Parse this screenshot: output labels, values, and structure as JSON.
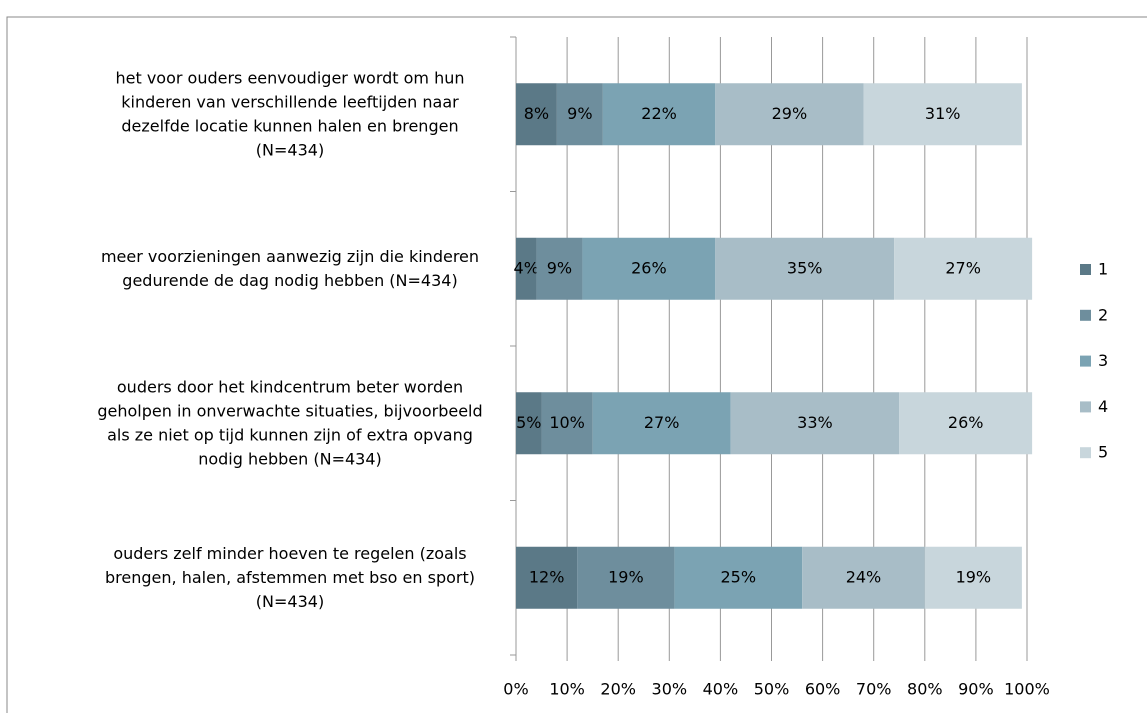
{
  "chart_data": {
    "type": "stacked-barh",
    "categories": [
      "het voor ouders eenvoudiger wordt om hun\nkinderen van verschillende leeftijden naar\ndezelfde locatie kunnen halen en brengen\n(N=434)",
      "meer voorzieningen aanwezig zijn die kinderen\ngedurende de dag nodig hebben (N=434)",
      "ouders door het kindcentrum beter worden\ngeholpen in onverwachte situaties, bijvoorbeeld\nals ze niet op tijd kunnen zijn of extra opvang\nnodig hebben  (N=434)",
      "ouders zelf minder hoeven te regelen (zoals\nbrengen, halen, afstemmen met bso en sport)\n(N=434)"
    ],
    "series": [
      {
        "name": "1",
        "color": "#5b7987",
        "values": [
          8,
          4,
          5,
          12
        ],
        "value_labels": [
          "8%",
          "4%",
          "5%",
          "12%"
        ]
      },
      {
        "name": "2",
        "color": "#6e8e9d",
        "values": [
          9,
          9,
          10,
          19
        ],
        "value_labels": [
          "9%",
          "9%",
          "10%",
          "19%"
        ]
      },
      {
        "name": "3",
        "color": "#7ba3b3",
        "values": [
          22,
          26,
          27,
          25
        ],
        "value_labels": [
          "22%",
          "26%",
          "27%",
          "25%"
        ]
      },
      {
        "name": "4",
        "color": "#a8bdc7",
        "values": [
          29,
          35,
          33,
          24
        ],
        "value_labels": [
          "29%",
          "35%",
          "33%",
          "24%"
        ]
      },
      {
        "name": "5",
        "color": "#c8d6dc",
        "values": [
          31,
          27,
          26,
          19
        ],
        "value_labels": [
          "31%",
          "27%",
          "26%",
          "19%"
        ]
      }
    ],
    "xlim": [
      0,
      100
    ],
    "xticks": [
      {
        "value": 0,
        "label": "0%"
      },
      {
        "value": 10,
        "label": "10%"
      },
      {
        "value": 20,
        "label": "20%"
      },
      {
        "value": 30,
        "label": "30%"
      },
      {
        "value": 40,
        "label": "40%"
      },
      {
        "value": 50,
        "label": "50%"
      },
      {
        "value": 60,
        "label": "60%"
      },
      {
        "value": 70,
        "label": "70%"
      },
      {
        "value": 80,
        "label": "80%"
      },
      {
        "value": 90,
        "label": "90%"
      },
      {
        "value": 100,
        "label": "100%"
      }
    ],
    "grid": true,
    "legend": "right"
  }
}
